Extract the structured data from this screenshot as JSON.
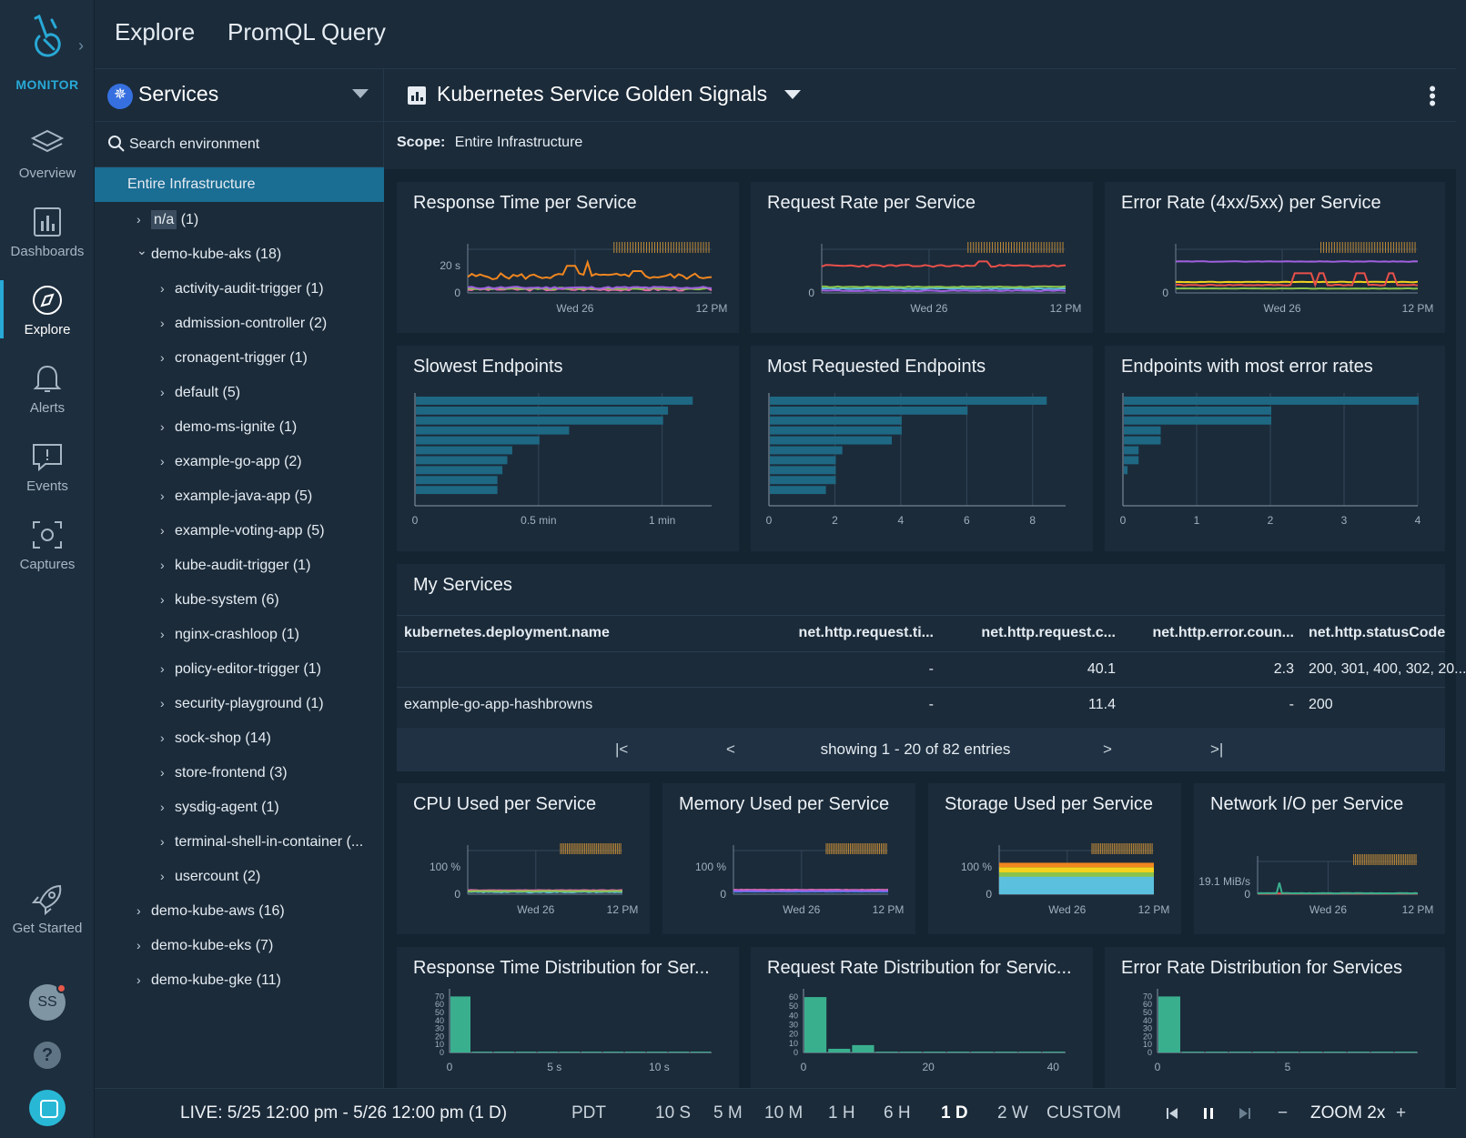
{
  "brand": {
    "name": "MONITOR"
  },
  "nav": [
    {
      "label": "Overview",
      "icon": "layers-icon"
    },
    {
      "label": "Dashboards",
      "icon": "bar-chart-icon"
    },
    {
      "label": "Explore",
      "icon": "compass-icon",
      "active": true
    },
    {
      "label": "Alerts",
      "icon": "bell-icon"
    },
    {
      "label": "Events",
      "icon": "event-icon"
    },
    {
      "label": "Captures",
      "icon": "capture-icon"
    }
  ],
  "get_started": {
    "label": "Get Started"
  },
  "user": {
    "initials": "SS"
  },
  "help": {
    "label": "?"
  },
  "top_tabs": [
    "Explore",
    "PromQL Query"
  ],
  "tree": {
    "selector": "Services",
    "search_placeholder": "Search environment",
    "rows": [
      {
        "label": "Entire Infrastructure"
      },
      {
        "label": "n/a",
        "count": " (1)"
      },
      {
        "label": "demo-kube-aks (18)"
      },
      {
        "label": "activity-audit-trigger (1)"
      },
      {
        "label": "admission-controller (2)"
      },
      {
        "label": "cronagent-trigger (1)"
      },
      {
        "label": "default (5)"
      },
      {
        "label": "demo-ms-ignite (1)"
      },
      {
        "label": "example-go-app (2)"
      },
      {
        "label": "example-java-app (5)"
      },
      {
        "label": "example-voting-app (5)"
      },
      {
        "label": "kube-audit-trigger (1)"
      },
      {
        "label": "kube-system (6)"
      },
      {
        "label": "nginx-crashloop (1)"
      },
      {
        "label": "policy-editor-trigger (1)"
      },
      {
        "label": "security-playground (1)"
      },
      {
        "label": "sock-shop (14)"
      },
      {
        "label": "store-frontend (3)"
      },
      {
        "label": "sysdig-agent (1)"
      },
      {
        "label": "terminal-shell-in-container (..."
      },
      {
        "label": "usercount (2)"
      },
      {
        "label": "demo-kube-aws (16)"
      },
      {
        "label": "demo-kube-eks (7)"
      },
      {
        "label": "demo-kube-gke (11)"
      }
    ]
  },
  "dashboard": {
    "title": "Kubernetes Service Golden Signals",
    "scope_label": "Scope:",
    "scope_value": "Entire Infrastructure"
  },
  "panels": {
    "response_time": {
      "title": "Response Time per Service",
      "y_ticks": [
        "20 s",
        "0"
      ],
      "x_ticks": [
        "Wed 26",
        "12 PM"
      ]
    },
    "request_rate": {
      "title": "Request Rate per Service",
      "y_ticks": [
        "0"
      ],
      "x_ticks": [
        "Wed 26",
        "12 PM"
      ]
    },
    "error_rate": {
      "title": "Error Rate (4xx/5xx) per Service",
      "y_ticks": [
        "0"
      ],
      "x_ticks": [
        "Wed 26",
        "12 PM"
      ]
    },
    "cpu": {
      "title": "CPU Used per Service",
      "y_ticks": [
        "100 %",
        "0"
      ],
      "x_ticks": [
        "Wed 26",
        "12 PM"
      ]
    },
    "memory": {
      "title": "Memory Used per Service",
      "y_ticks": [
        "100 %",
        "0"
      ],
      "x_ticks": [
        "Wed 26",
        "12 PM"
      ]
    },
    "storage": {
      "title": "Storage Used per Service",
      "y_ticks": [
        "100 %",
        "0"
      ],
      "x_ticks": [
        "Wed 26",
        "12 PM"
      ]
    },
    "network": {
      "title": "Network I/O per Service",
      "y_ticks": [
        "19.1 MiB/s",
        "0"
      ],
      "x_ticks": [
        "Wed 26",
        "12 PM"
      ]
    }
  },
  "chart_data": [
    {
      "type": "bar",
      "orientation": "horizontal",
      "title": "Slowest Endpoints",
      "x_ticks": [
        "0",
        "0.5 min",
        "1 min"
      ],
      "xlim": [
        0,
        1.2
      ],
      "values": [
        1.12,
        1.02,
        1.0,
        0.62,
        0.5,
        0.39,
        0.37,
        0.35,
        0.33,
        0.33
      ]
    },
    {
      "type": "bar",
      "orientation": "horizontal",
      "title": "Most Requested Endpoints",
      "x_ticks": [
        "0",
        "2",
        "4",
        "6",
        "8"
      ],
      "xlim": [
        0,
        9
      ],
      "values": [
        8.4,
        6.0,
        4.0,
        4.0,
        3.7,
        2.2,
        2.0,
        2.0,
        2.0,
        1.7
      ]
    },
    {
      "type": "bar",
      "orientation": "horizontal",
      "title": "Endpoints with most error rates",
      "x_ticks": [
        "0",
        "1",
        "2",
        "3",
        "4"
      ],
      "xlim": [
        0,
        4
      ],
      "values": [
        4.0,
        2.0,
        2.0,
        0.5,
        0.5,
        0.2,
        0.2,
        0.05
      ]
    },
    {
      "type": "bar",
      "title": "Response Time Distribution for Ser...",
      "y_ticks": [
        "70",
        "60",
        "50",
        "40",
        "30",
        "20",
        "10",
        "0"
      ],
      "x_ticks": [
        "0",
        "5 s",
        "10 s"
      ],
      "ylim": [
        0,
        75
      ],
      "xlim": [
        0,
        12.5
      ],
      "values": [
        70,
        0,
        0.5,
        0.5,
        0,
        0,
        0,
        0,
        0,
        0,
        0,
        0.3
      ]
    },
    {
      "type": "bar",
      "title": "Request Rate Distribution for Servic...",
      "y_ticks": [
        "60",
        "50",
        "40",
        "30",
        "20",
        "10",
        "0"
      ],
      "x_ticks": [
        "0",
        "20",
        "40"
      ],
      "ylim": [
        0,
        65
      ],
      "xlim": [
        0,
        42
      ],
      "values": [
        60,
        4,
        8,
        0,
        0,
        0,
        0,
        0,
        0,
        0,
        0.3
      ]
    },
    {
      "type": "bar",
      "title": "Error Rate Distribution for Services",
      "y_ticks": [
        "70",
        "60",
        "50",
        "40",
        "30",
        "20",
        "10",
        "0"
      ],
      "x_ticks": [
        "0",
        "5"
      ],
      "ylim": [
        0,
        75
      ],
      "xlim": [
        0,
        10
      ],
      "values": [
        70,
        0,
        0.3,
        0.3,
        0,
        0,
        0,
        0,
        0,
        0,
        0.3
      ]
    }
  ],
  "table": {
    "title": "My Services",
    "columns": [
      "kubernetes.deployment.name",
      "net.http.request.ti...",
      "net.http.request.c...",
      "net.http.error.coun...",
      "net.http.statusCode"
    ],
    "rows": [
      [
        "",
        "-",
        "40.1",
        "2.3",
        "200, 301, 400, 302, 20..."
      ],
      [
        "example-go-app-hashbrowns",
        "-",
        "11.4",
        "-",
        "200"
      ]
    ],
    "pager": {
      "first": "|<",
      "prev": "<",
      "text": "showing 1 - 20 of 82 entries",
      "next": ">",
      "last": ">|"
    }
  },
  "timebar": {
    "live": "LIVE: 5/25 12:00 pm - 5/26 12:00 pm (1 D)",
    "tz": "PDT",
    "ranges": [
      "10 S",
      "5 M",
      "10 M",
      "1 H",
      "6 H",
      "1 D",
      "2 W",
      "CUSTOM"
    ],
    "active_range": "1 D",
    "zoom_minus": "−",
    "zoom": "ZOOM 2x",
    "zoom_plus": "+"
  },
  "colors": {
    "accent": "#28a9d6",
    "selected": "#1a6d93",
    "bar": "#1e6883",
    "dist_bar": "#3aaf8e"
  }
}
